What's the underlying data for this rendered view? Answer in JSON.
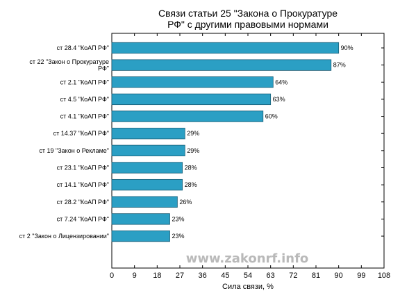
{
  "chart_data": {
    "type": "bar",
    "orientation": "horizontal",
    "title_lines": [
      "Связи статьи 25 \"Закона о Прокуратуре",
      "РФ\" с другими правовыми нормами"
    ],
    "xlabel": "Сила связи, %",
    "ylabel": "",
    "xlim": [
      0,
      108
    ],
    "xticks": [
      0,
      9,
      18,
      27,
      36,
      45,
      54,
      63,
      72,
      81,
      90,
      99,
      108
    ],
    "grid": false,
    "categories": [
      [
        "ст 28.4 \"КоАП РФ\""
      ],
      [
        "ст 22 \"Закон о Прокуратуре",
        "РФ\""
      ],
      [
        "ст 2.1 \"КоАП РФ\""
      ],
      [
        "ст 4.5 \"КоАП РФ\""
      ],
      [
        "ст 4.1 \"КоАП РФ\""
      ],
      [
        "ст 14.37 \"КоАП РФ\""
      ],
      [
        "ст 19 \"Закон о Рекламе\""
      ],
      [
        "ст 23.1 \"КоАП РФ\""
      ],
      [
        "ст 14.1 \"КоАП РФ\""
      ],
      [
        "ст 28.2 \"КоАП РФ\""
      ],
      [
        "ст 7.24 \"КоАП РФ\""
      ],
      [
        "ст 2 \"Закон о Лицензировании\""
      ]
    ],
    "values": [
      90,
      87,
      64,
      63,
      60,
      29,
      29,
      28,
      28,
      26,
      23,
      23
    ],
    "value_labels": [
      "90%",
      "87%",
      "64%",
      "63%",
      "60%",
      "29%",
      "29%",
      "28%",
      "28%",
      "26%",
      "23%",
      "23%"
    ],
    "bar_color": "#2b9fc4",
    "bar_edge_color": "#1a5e77"
  },
  "watermark": "www.zakonrf.info"
}
